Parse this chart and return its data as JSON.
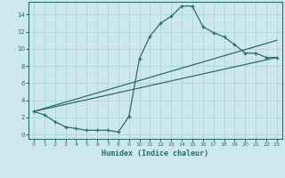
{
  "xlabel": "Humidex (Indice chaleur)",
  "bg_color": "#cce8ec",
  "grid_color": "#b0d8de",
  "line_color": "#2e6b6b",
  "xlim": [
    -0.5,
    23.5
  ],
  "ylim": [
    -0.5,
    15.5
  ],
  "xticks": [
    0,
    1,
    2,
    3,
    4,
    5,
    6,
    7,
    8,
    9,
    10,
    11,
    12,
    13,
    14,
    15,
    16,
    17,
    18,
    19,
    20,
    21,
    22,
    23
  ],
  "yticks": [
    0,
    2,
    4,
    6,
    8,
    10,
    12,
    14
  ],
  "curve1_x": [
    0,
    1,
    2,
    3,
    4,
    5,
    6,
    7,
    8,
    9,
    10,
    11,
    12,
    13,
    14,
    15,
    16,
    17,
    18,
    19,
    20,
    21,
    22,
    23
  ],
  "curve1_y": [
    2.7,
    2.3,
    1.5,
    0.9,
    0.7,
    0.5,
    0.5,
    0.5,
    0.3,
    2.1,
    8.9,
    11.5,
    13.0,
    13.8,
    15.0,
    15.0,
    12.6,
    11.9,
    11.4,
    10.5,
    9.5,
    9.5,
    9.0,
    9.0
  ],
  "line2_x": [
    0,
    23
  ],
  "line2_y": [
    2.7,
    11.0
  ],
  "line3_x": [
    0,
    23
  ],
  "line3_y": [
    2.7,
    9.0
  ]
}
